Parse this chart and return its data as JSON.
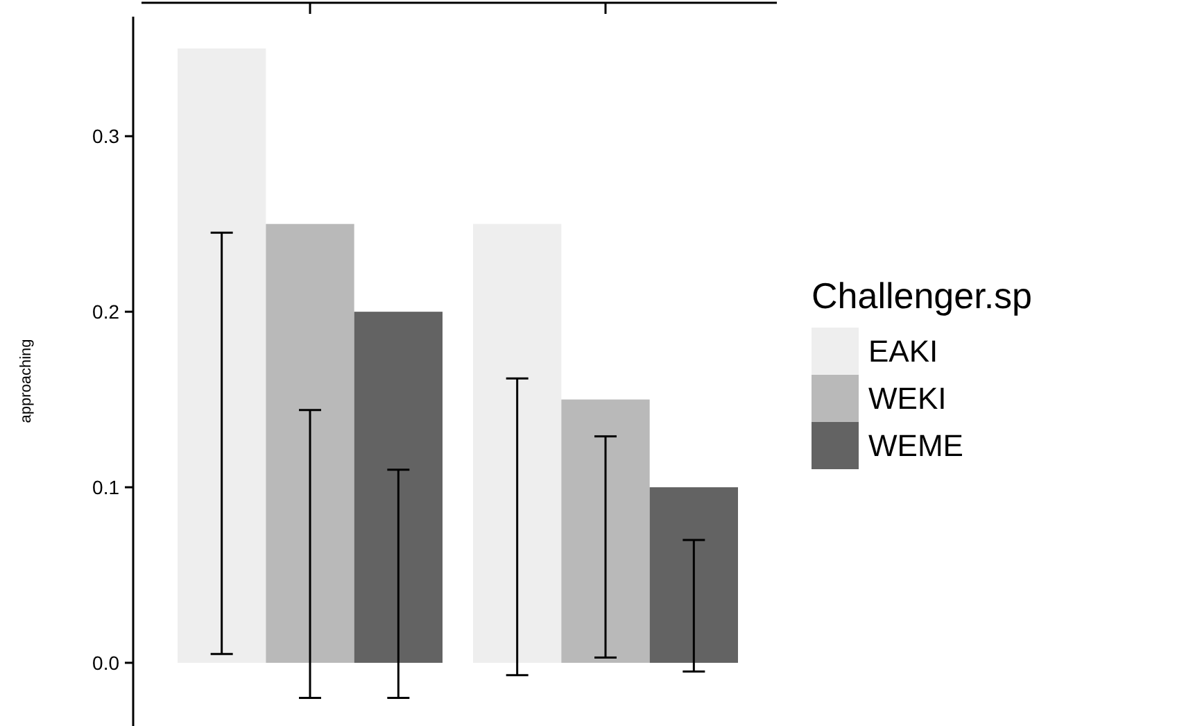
{
  "chart_data": {
    "type": "bar",
    "ylabel": "approaching",
    "legend_title": "Challenger.sp",
    "categories": [
      null,
      null
    ],
    "series": [
      {
        "name": "EAKI",
        "color": "#eeeeee",
        "values": [
          0.35,
          0.25
        ],
        "errors": [
          [
            0.005,
            0.245
          ],
          [
            -0.007,
            0.162
          ]
        ]
      },
      {
        "name": "WEKI",
        "color": "#b9b9b9",
        "values": [
          0.25,
          0.15
        ],
        "errors": [
          [
            -0.02,
            0.144
          ],
          [
            0.003,
            0.129
          ]
        ]
      },
      {
        "name": "WEME",
        "color": "#636363",
        "values": [
          0.2,
          0.1
        ],
        "errors": [
          [
            -0.02,
            0.11
          ],
          [
            -0.005,
            0.07
          ]
        ]
      }
    ],
    "ylim": [
      -0.036,
      0.376
    ],
    "yticks": [
      {
        "value": 0,
        "label": "0.0"
      },
      0.1,
      0.2,
      0.3
    ],
    "grid": false,
    "legend": "right",
    "tick_labels": "y"
  }
}
